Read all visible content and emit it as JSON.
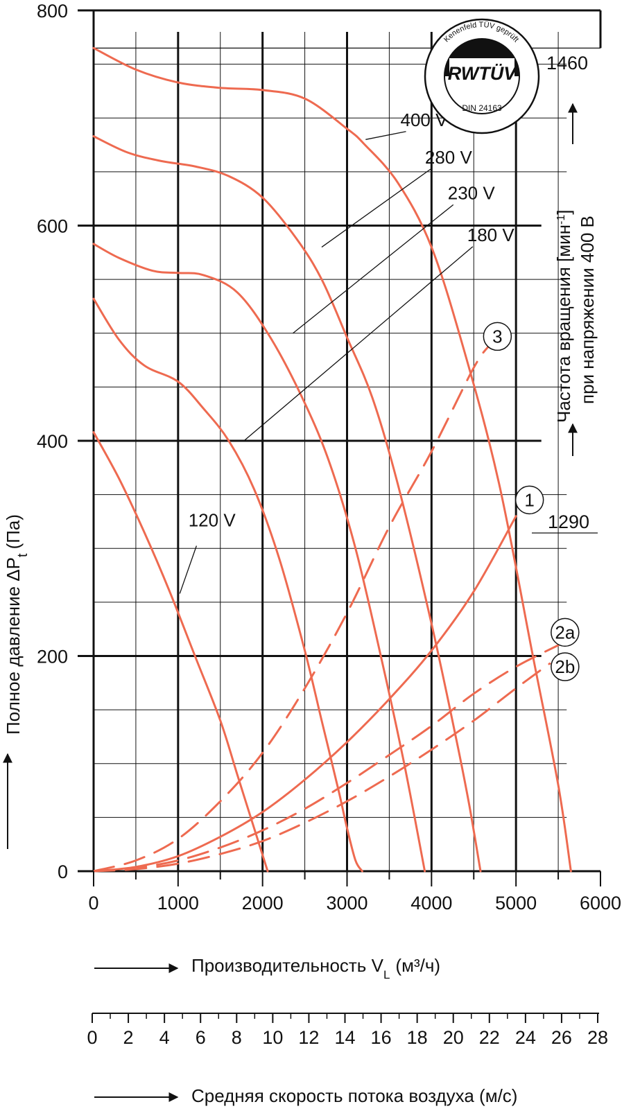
{
  "chart_data": {
    "type": "line",
    "xlabel": "Производительность V",
    "xlabel_sub": "L",
    "xlabel_unit": "(м³/ч)",
    "ylabel": "Полное давление ΔP",
    "ylabel_sub": "t",
    "ylabel_unit": "(Па)",
    "xlim": [
      0,
      6000
    ],
    "ylim": [
      0,
      800
    ],
    "x_ticks": [
      "0",
      "1000",
      "2000",
      "3000",
      "4000",
      "5000",
      "6000"
    ],
    "y_ticks": [
      "0",
      "200",
      "400",
      "600",
      "800"
    ],
    "grid": true,
    "secondary_axis": {
      "label": "Средняя скорость потока воздуха (м/с)",
      "ticks": [
        "0",
        "2",
        "4",
        "6",
        "8",
        "10",
        "12",
        "14",
        "16",
        "18",
        "20",
        "22",
        "24",
        "26",
        "28"
      ]
    },
    "right_label_line1": "Частота вращения [мин",
    "right_label_sup": "-1",
    "right_label_line1_end": "]",
    "right_label_line2": "при напряжении 400 В",
    "speed_labels": [
      "1460",
      "1290"
    ],
    "series": [
      {
        "name": "400 V",
        "style": "solid",
        "x": [
          0,
          500,
          1000,
          1500,
          2000,
          2500,
          3000,
          3200,
          3600,
          4000,
          4400,
          4800,
          5200,
          5500,
          5650
        ],
        "y": [
          765,
          745,
          733,
          728,
          726,
          718,
          690,
          676,
          640,
          580,
          480,
          360,
          200,
          80,
          0
        ]
      },
      {
        "name": "280 V",
        "style": "solid",
        "x": [
          0,
          400,
          800,
          1200,
          1600,
          2000,
          2400,
          2700,
          3000,
          3300,
          3600,
          4000,
          4300,
          4450,
          4580
        ],
        "y": [
          683,
          668,
          660,
          655,
          646,
          626,
          588,
          550,
          496,
          440,
          360,
          230,
          120,
          60,
          0
        ]
      },
      {
        "name": "230 V",
        "style": "solid",
        "x": [
          0,
          300,
          700,
          1000,
          1300,
          1700,
          2100,
          2500,
          2800,
          3100,
          3400,
          3650,
          3800,
          3920
        ],
        "y": [
          583,
          570,
          558,
          556,
          554,
          538,
          495,
          435,
          378,
          300,
          200,
          110,
          50,
          0
        ]
      },
      {
        "name": "180 V",
        "style": "solid",
        "x": [
          0,
          300,
          600,
          1000,
          1300,
          1600,
          1900,
          2200,
          2500,
          2700,
          2900,
          3000,
          3100,
          3180
        ],
        "y": [
          532,
          494,
          470,
          455,
          430,
          400,
          355,
          290,
          205,
          140,
          75,
          40,
          10,
          0
        ]
      },
      {
        "name": "120 V",
        "style": "solid",
        "x": [
          0,
          300,
          600,
          900,
          1200,
          1500,
          1700,
          1900,
          2000,
          2060
        ],
        "y": [
          408,
          365,
          315,
          260,
          200,
          140,
          90,
          40,
          15,
          0
        ]
      },
      {
        "name": "1",
        "style": "solid",
        "x": [
          0,
          500,
          1000,
          1500,
          2000,
          2500,
          3000,
          3500,
          4000,
          4500,
          5000
        ],
        "y": [
          0,
          4,
          14,
          32,
          55,
          85,
          120,
          160,
          205,
          260,
          330
        ]
      },
      {
        "name": "3",
        "style": "dashed",
        "x": [
          0,
          500,
          1000,
          1500,
          2000,
          2500,
          3000,
          3500,
          4000,
          4500,
          4700
        ],
        "y": [
          0,
          10,
          30,
          65,
          110,
          170,
          240,
          320,
          390,
          468,
          490
        ]
      },
      {
        "name": "2a",
        "style": "dashed",
        "x": [
          0,
          500,
          1000,
          1500,
          2000,
          2500,
          3000,
          3500,
          4000,
          4500,
          5000,
          5500
        ],
        "y": [
          0,
          3,
          10,
          22,
          38,
          58,
          82,
          108,
          135,
          165,
          190,
          210
        ]
      },
      {
        "name": "2b",
        "style": "dashed",
        "x": [
          0,
          500,
          1000,
          1500,
          2000,
          2500,
          3000,
          3500,
          4000,
          4500,
          5000,
          5400
        ],
        "y": [
          0,
          2,
          7,
          16,
          28,
          45,
          65,
          88,
          113,
          140,
          170,
          193
        ]
      }
    ],
    "curve_labels": [
      {
        "text": "400 V",
        "x": 3780,
        "y": 690
      },
      {
        "text": "280 V",
        "x": 4070,
        "y": 655
      },
      {
        "text": "230 V",
        "x": 4340,
        "y": 622
      },
      {
        "text": "180 V",
        "x": 4570,
        "y": 583
      },
      {
        "text": "120 V",
        "x": 1270,
        "y": 318
      }
    ],
    "circle_labels": [
      {
        "text": "3",
        "x": 4780,
        "y": 497
      },
      {
        "text": "1",
        "x": 5160,
        "y": 345
      },
      {
        "text": "2a",
        "x": 5580,
        "y": 222
      },
      {
        "text": "2b",
        "x": 5580,
        "y": 190
      }
    ],
    "badge": {
      "arc_text": "Kenenfeld TÜV geprüft",
      "brand": "RWTÜV",
      "norm": "DIN 24163"
    },
    "colors": {
      "curve": "#EE6A50",
      "axis": "#111111",
      "grid": "#111111"
    }
  }
}
